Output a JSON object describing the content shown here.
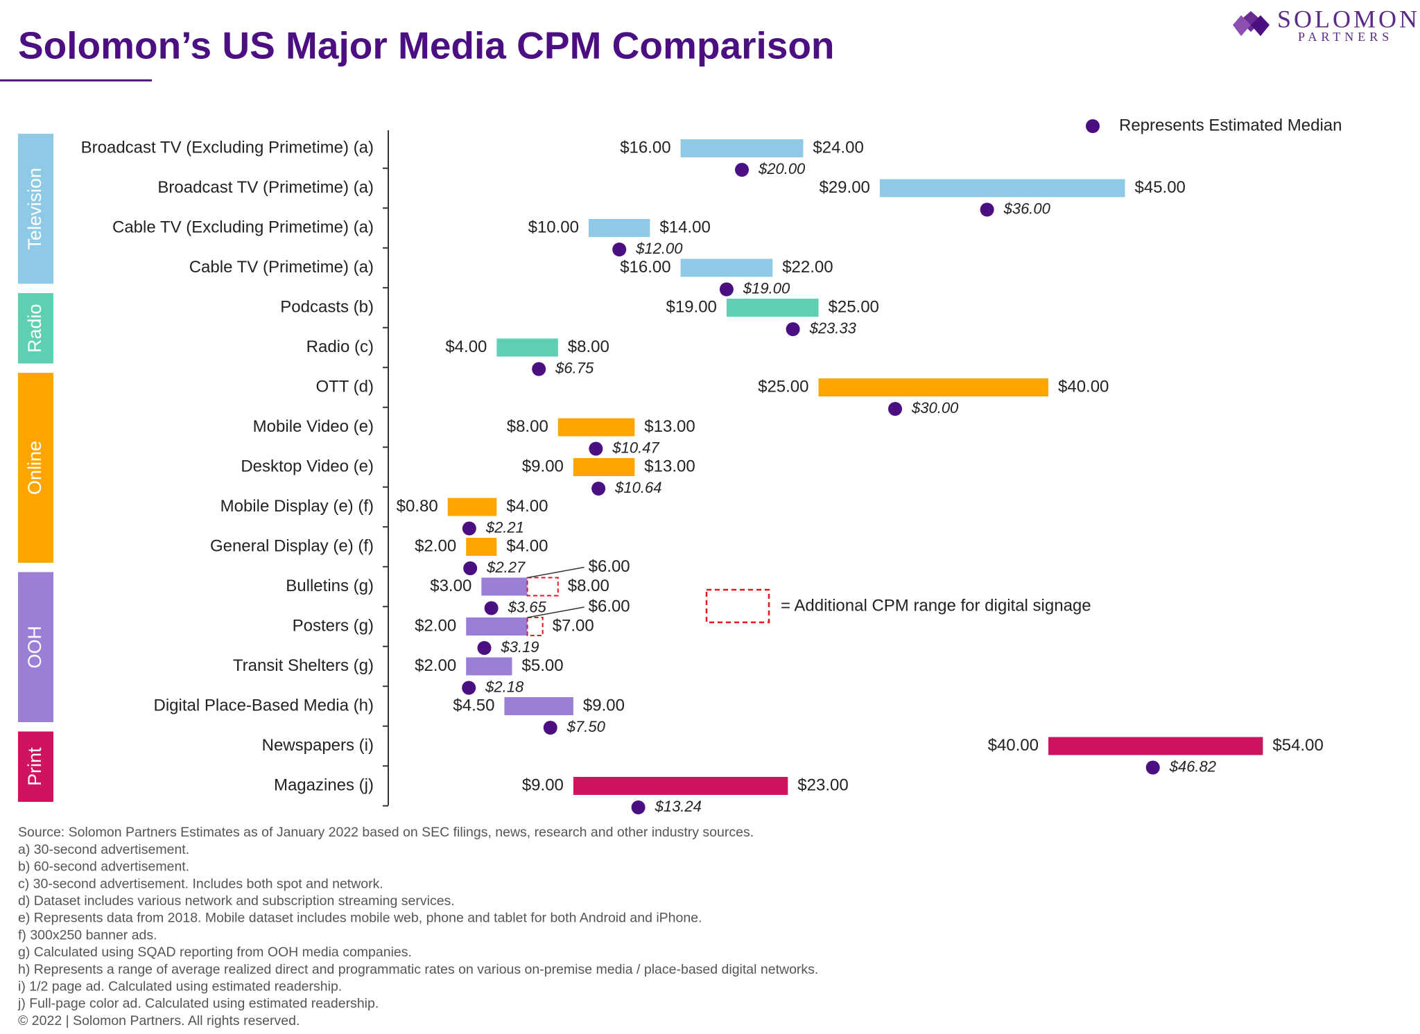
{
  "logo": {
    "name": "SOLOMON",
    "subtitle": "PARTNERS"
  },
  "chart_data": {
    "type": "range",
    "title": "Solomon’s US Major Media CPM Comparison",
    "median_legend": "Represents Estimated Median",
    "median_color": "#4b0f82",
    "signage_legend": "= Additional CPM range for digital signage",
    "signage_color": "#e8141b",
    "series": [
      {
        "name": "Television",
        "color": "#8ecae6",
        "categories": [
          "Broadcast TV (Excluding Primetime) (a)",
          "Broadcast TV (Primetime) (a)",
          "Cable TV (Excluding Primetime) (a)",
          "Cable TV (Primetime) (a)"
        ],
        "low": {
          "values": [
            16,
            29,
            10,
            16
          ],
          "value_labels": [
            "$16.00",
            "$29.00",
            "$10.00",
            "$16.00"
          ]
        },
        "high": {
          "values": [
            24,
            45,
            14,
            22
          ],
          "value_labels": [
            "$24.00",
            "$45.00",
            "$14.00",
            "$22.00"
          ]
        },
        "median": {
          "values": [
            20,
            36,
            12,
            19
          ],
          "value_labels": [
            "$20.00",
            "$36.00",
            "$12.00",
            "$19.00"
          ]
        }
      },
      {
        "name": "Radio",
        "color": "#5ecfb1",
        "categories": [
          "Podcasts (b)",
          "Radio (c)"
        ],
        "low": {
          "values": [
            19,
            4
          ],
          "value_labels": [
            "$19.00",
            "$4.00"
          ]
        },
        "high": {
          "values": [
            25,
            8
          ],
          "value_labels": [
            "$25.00",
            "$8.00"
          ]
        },
        "median": {
          "values": [
            23.33,
            6.75
          ],
          "value_labels": [
            "$23.33",
            "$6.75"
          ]
        }
      },
      {
        "name": "Online",
        "color": "#ffa500",
        "categories": [
          "OTT (d)",
          "Mobile Video (e)",
          "Desktop Video (e)",
          "Mobile Display (e) (f)",
          "General Display (e) (f)"
        ],
        "low": {
          "values": [
            25,
            8,
            9,
            0.8,
            2
          ],
          "value_labels": [
            "$25.00",
            "$8.00",
            "$9.00",
            "$0.80",
            "$2.00"
          ]
        },
        "high": {
          "values": [
            40,
            13,
            13,
            4,
            4
          ],
          "value_labels": [
            "$40.00",
            "$13.00",
            "$13.00",
            "$4.00",
            "$4.00"
          ]
        },
        "median": {
          "values": [
            30,
            10.47,
            10.64,
            2.21,
            2.27
          ],
          "value_labels": [
            "$30.00",
            "$10.47",
            "$10.64",
            "$2.21",
            "$2.27"
          ]
        }
      },
      {
        "name": "OOH",
        "color": "#9b7fd6",
        "categories": [
          "Bulletins (g)",
          "Posters (g)",
          "Transit Shelters (g)",
          "Digital Place-Based Media (h)"
        ],
        "low": {
          "values": [
            3,
            2,
            2,
            4.5
          ],
          "value_labels": [
            "$3.00",
            "$2.00",
            "$2.00",
            "$4.50"
          ]
        },
        "high": {
          "values": [
            8,
            7,
            5,
            9
          ],
          "value_labels": [
            "$8.00",
            "$7.00",
            "$5.00",
            "$9.00"
          ]
        },
        "median": {
          "values": [
            3.65,
            3.19,
            2.18,
            7.5
          ],
          "value_labels": [
            "$3.65",
            "$3.19",
            "$2.18",
            "$7.50"
          ]
        },
        "signage_from": {
          "values": [
            6,
            6,
            null,
            null
          ],
          "value_labels": [
            "$6.00",
            "$6.00",
            null,
            null
          ]
        }
      },
      {
        "name": "Print",
        "color": "#d0135f",
        "categories": [
          "Newspapers (i)",
          "Magazines (j)"
        ],
        "low": {
          "values": [
            40,
            9
          ],
          "value_labels": [
            "$40.00",
            "$9.00"
          ]
        },
        "high": {
          "values": [
            54,
            23
          ],
          "value_labels": [
            "$54.00",
            "$23.00"
          ]
        },
        "median": {
          "values": [
            46.82,
            13.24
          ],
          "value_labels": [
            "$46.82",
            "$13.24"
          ]
        }
      }
    ]
  },
  "footnotes": [
    "Source: Solomon Partners Estimates as of January 2022 based on SEC filings, news, research and other industry sources.",
    "a) 30-second advertisement.",
    "b) 60-second advertisement.",
    "c) 30-second advertisement. Includes both spot and network.",
    "d) Dataset includes various network and subscription streaming services.",
    "e) Represents data from 2018. Mobile dataset includes mobile web, phone and tablet for both Android and iPhone.",
    "f) 300x250 banner ads.",
    "g) Calculated using SQAD reporting from OOH media companies.",
    "h) Represents a range of average realized direct and programmatic rates on various on-premise media / place-based digital networks.",
    "i) 1/2 page ad. Calculated using estimated readership.",
    "j) Full-page color ad. Calculated using estimated readership.",
    "© 2022 | Solomon Partners. All rights reserved."
  ]
}
